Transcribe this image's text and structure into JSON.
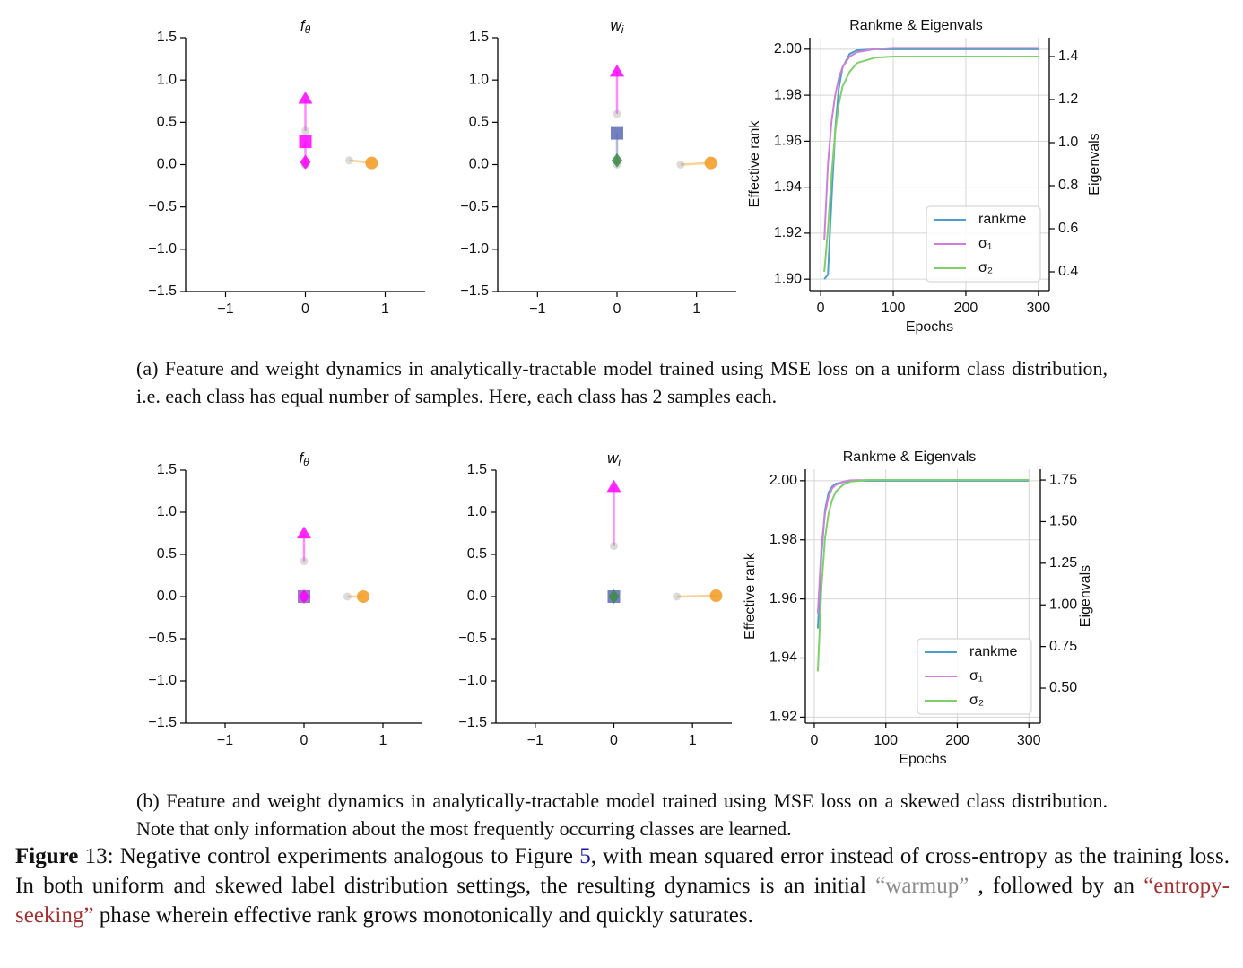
{
  "figures": [
    {
      "panels": [
        {
          "type": "vector",
          "title": {
            "base": "f",
            "sub": "θ"
          },
          "xlim": [
            -1.5,
            1.5
          ],
          "ylim": [
            -1.5,
            1.5
          ],
          "xticks": [
            {
              "value": -1,
              "label": "−1"
            },
            0,
            1
          ],
          "yticks": [
            1.5,
            {
              "value": 1,
              "label": "1.0"
            },
            0.5,
            {
              "value": 0,
              "label": "0.0"
            },
            {
              "value": -0.5,
              "label": "−0.5"
            },
            {
              "value": -1,
              "label": "−1.0"
            },
            {
              "value": -1.5,
              "label": "−1.5"
            }
          ],
          "markers": [
            {
              "shape": "triangle",
              "color": "#ff00ff",
              "x": 0,
              "y": 0.78,
              "start_x": 0,
              "start_y": 0.4
            },
            {
              "shape": "square",
              "color": "#ff00ff",
              "x": 0,
              "y": 0.27,
              "start_x": 0,
              "start_y": 0.0
            },
            {
              "shape": "diamond",
              "color": "#ff00ff",
              "x": 0,
              "y": 0.03,
              "start_x": 0,
              "start_y": 0.0
            },
            {
              "shape": "circle",
              "color": "#f39a1e",
              "x": 0.83,
              "y": 0.02,
              "start_x": 0.55,
              "start_y": 0.05
            }
          ]
        },
        {
          "type": "vector",
          "title": {
            "base": "w",
            "sub": "i"
          },
          "xlim": [
            -1.5,
            1.5
          ],
          "ylim": [
            -1.5,
            1.5
          ],
          "xticks": [
            {
              "value": -1,
              "label": "−1"
            },
            0,
            1
          ],
          "yticks": [
            1.5,
            {
              "value": 1,
              "label": "1.0"
            },
            0.5,
            {
              "value": 0,
              "label": "0.0"
            },
            {
              "value": -0.5,
              "label": "−0.5"
            },
            {
              "value": -1,
              "label": "−1.0"
            },
            {
              "value": -1.5,
              "label": "−1.5"
            }
          ],
          "markers": [
            {
              "shape": "triangle",
              "color": "#ff00ff",
              "x": 0,
              "y": 1.1,
              "start_x": 0,
              "start_y": 0.6
            },
            {
              "shape": "square",
              "color": "#5b6bb5",
              "x": 0,
              "y": 0.37,
              "start_x": 0,
              "start_y": 0.05
            },
            {
              "shape": "diamond",
              "color": "#3d8a45",
              "x": 0,
              "y": 0.05,
              "start_x": 0,
              "start_y": 0.0
            },
            {
              "shape": "circle",
              "color": "#f39a1e",
              "x": 1.18,
              "y": 0.02,
              "start_x": 0.8,
              "start_y": 0.0
            }
          ]
        },
        {
          "type": "line",
          "title": "Rankme & Eigenvals",
          "xlabel": "Epochs",
          "ylabel": "Effective rank",
          "y2label": "Eigenvals",
          "xlim": [
            -15,
            315
          ],
          "ylim": [
            1.895,
            2.005
          ],
          "y2lim": [
            0.3125,
            1.4875
          ],
          "xticks": [
            0,
            100,
            200,
            300
          ],
          "yticks": [
            {
              "value": 1.9,
              "label": "1.90"
            },
            1.92,
            1.94,
            1.96,
            1.98,
            {
              "value": 2,
              "label": "2.00"
            }
          ],
          "y2ticks": [
            0.4,
            0.6,
            0.8,
            {
              "value": 1,
              "label": "1.0"
            },
            1.2,
            1.4
          ],
          "grid": true,
          "legend": "lower right",
          "x": [
            5,
            10,
            15,
            20,
            25,
            30,
            40,
            50,
            75,
            100,
            200,
            300
          ],
          "series": [
            {
              "name": "rankme",
              "color": "#4c9fc6",
              "values": [
                1.9,
                1.902,
                1.935,
                1.965,
                1.983,
                1.992,
                1.998,
                1.9995,
                2.0,
                2.0,
                2.0,
                2.0
              ]
            },
            {
              "name": "σ₁",
              "color": "#d07fd8",
              "axis": "y2",
              "values": [
                0.55,
                0.9,
                1.1,
                1.22,
                1.3,
                1.35,
                1.4,
                1.42,
                1.435,
                1.44,
                1.44,
                1.44
              ]
            },
            {
              "name": "σ₂",
              "color": "#7fcf6a",
              "axis": "y2",
              "values": [
                0.4,
                0.6,
                0.85,
                1.05,
                1.18,
                1.26,
                1.33,
                1.37,
                1.395,
                1.4,
                1.4,
                1.4
              ]
            }
          ]
        }
      ],
      "caption": "(a) Feature and weight dynamics in analytically-tractable model trained using MSE loss on a uniform class distribution, i.e. each class has equal number of samples. Here, each class has 2 samples each."
    },
    {
      "panels": [
        {
          "type": "vector",
          "title": {
            "base": "f",
            "sub": "θ"
          },
          "xlim": [
            -1.5,
            1.5
          ],
          "ylim": [
            -1.5,
            1.5
          ],
          "xticks": [
            {
              "value": -1,
              "label": "−1"
            },
            0,
            1
          ],
          "yticks": [
            1.5,
            {
              "value": 1,
              "label": "1.0"
            },
            0.5,
            {
              "value": 0,
              "label": "0.0"
            },
            {
              "value": -0.5,
              "label": "−0.5"
            },
            {
              "value": -1,
              "label": "−1.0"
            },
            {
              "value": -1.5,
              "label": "−1.5"
            }
          ],
          "markers": [
            {
              "shape": "triangle",
              "color": "#ff00ff",
              "x": 0,
              "y": 0.75,
              "start_x": 0,
              "start_y": 0.42
            },
            {
              "shape": "square",
              "color": "#8f5fbf",
              "x": 0,
              "y": 0.0,
              "start_x": 0,
              "start_y": 0.0
            },
            {
              "shape": "diamond",
              "color": "#ff00ff",
              "x": 0,
              "y": 0.0,
              "start_x": 0,
              "start_y": 0.0
            },
            {
              "shape": "circle",
              "color": "#f39a1e",
              "x": 0.75,
              "y": 0.0,
              "start_x": 0.55,
              "start_y": 0.0
            }
          ]
        },
        {
          "type": "vector",
          "title": {
            "base": "w",
            "sub": "i"
          },
          "xlim": [
            -1.5,
            1.5
          ],
          "ylim": [
            -1.5,
            1.5
          ],
          "xticks": [
            {
              "value": -1,
              "label": "−1"
            },
            0,
            1
          ],
          "yticks": [
            1.5,
            {
              "value": 1,
              "label": "1.0"
            },
            0.5,
            {
              "value": 0,
              "label": "0.0"
            },
            {
              "value": -0.5,
              "label": "−0.5"
            },
            {
              "value": -1,
              "label": "−1.0"
            },
            {
              "value": -1.5,
              "label": "−1.5"
            }
          ],
          "markers": [
            {
              "shape": "triangle",
              "color": "#ff00ff",
              "x": 0,
              "y": 1.3,
              "start_x": 0,
              "start_y": 0.6
            },
            {
              "shape": "square",
              "color": "#5b6bb5",
              "x": 0,
              "y": 0.0,
              "start_x": 0,
              "start_y": 0.0
            },
            {
              "shape": "diamond",
              "color": "#3d8a45",
              "x": 0,
              "y": 0.0,
              "start_x": 0,
              "start_y": 0.0
            },
            {
              "shape": "circle",
              "color": "#f39a1e",
              "x": 1.3,
              "y": 0.01,
              "start_x": 0.8,
              "start_y": 0.0
            }
          ]
        },
        {
          "type": "line",
          "title": "Rankme & Eigenvals",
          "xlabel": "Epochs",
          "ylabel": "Effective rank",
          "y2label": "Eigenvals",
          "xlim": [
            -12.5,
            316
          ],
          "ylim": [
            1.918,
            2.0039
          ],
          "y2lim": [
            0.29,
            1.815
          ],
          "xticks": [
            0,
            100,
            200,
            300
          ],
          "yticks": [
            1.92,
            1.94,
            1.96,
            1.98,
            {
              "value": 2,
              "label": "2.00"
            }
          ],
          "y2ticks": [
            {
              "value": 0.5,
              "label": "0.50"
            },
            0.75,
            {
              "value": 1,
              "label": "1.00"
            },
            1.25,
            {
              "value": 1.5,
              "label": "1.50"
            },
            1.75
          ],
          "grid": true,
          "legend": "lower right",
          "x": [
            5,
            10,
            15,
            20,
            25,
            30,
            40,
            50,
            75,
            100,
            200,
            300
          ],
          "series": [
            {
              "name": "rankme",
              "color": "#4c9fc6",
              "values": [
                1.95,
                1.975,
                1.99,
                1.996,
                1.998,
                1.999,
                1.9995,
                2.0,
                2.0,
                2.0,
                2.0,
                2.0
              ]
            },
            {
              "name": "σ₁",
              "color": "#d07fd8",
              "axis": "y2",
              "values": [
                0.95,
                1.35,
                1.55,
                1.65,
                1.7,
                1.72,
                1.74,
                1.748,
                1.75,
                1.75,
                1.75,
                1.75
              ]
            },
            {
              "name": "σ₂",
              "color": "#7fcf6a",
              "axis": "y2",
              "values": [
                0.6,
                1.1,
                1.4,
                1.55,
                1.63,
                1.68,
                1.72,
                1.74,
                1.75,
                1.75,
                1.75,
                1.75
              ]
            }
          ]
        }
      ],
      "caption": "(b) Feature and weight dynamics in analytically-tractable model trained using MSE loss on a skewed class distribution. Note that only information about the most frequently occurring classes are learned."
    }
  ],
  "caption": {
    "label": "Figure",
    "parts": [
      " 13: Negative control experiments analogous to Figure ",
      "5",
      ", with mean squared error instead of cross-entropy as the training loss. In both uniform and skewed label distribution settings, the resulting dynamics is an initial ",
      "“warmup”",
      " , followed by an ",
      "“entropy-seeking”",
      " phase wherein effective rank grows monotonically and quickly saturates."
    ]
  }
}
